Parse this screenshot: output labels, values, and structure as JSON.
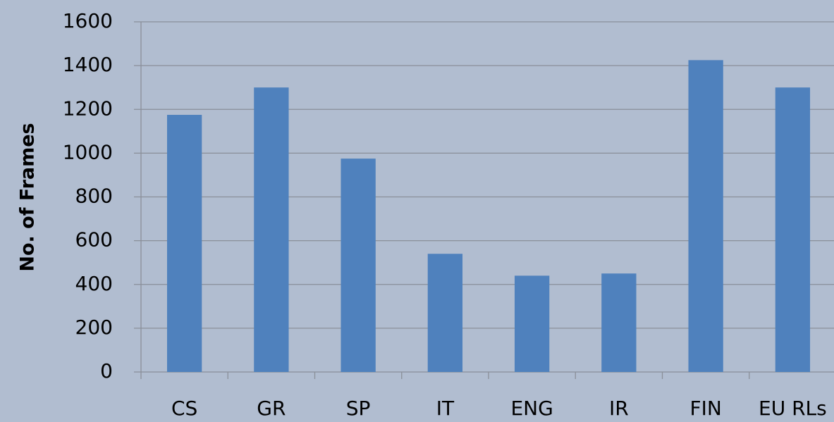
{
  "chart_data": {
    "type": "bar",
    "y_label": "No. of Frames",
    "categories": [
      "CS",
      "GR",
      "SP",
      "IT",
      "ENG",
      "IR",
      "FIN",
      "EU RLs"
    ],
    "values": [
      1175,
      1300,
      975,
      540,
      440,
      450,
      1425,
      1300
    ],
    "color": "#4f81bd",
    "ylim": [
      0,
      1600
    ],
    "yticks": [
      0,
      200,
      400,
      600,
      800,
      1000,
      1200,
      1400,
      1600
    ],
    "grid": true
  }
}
